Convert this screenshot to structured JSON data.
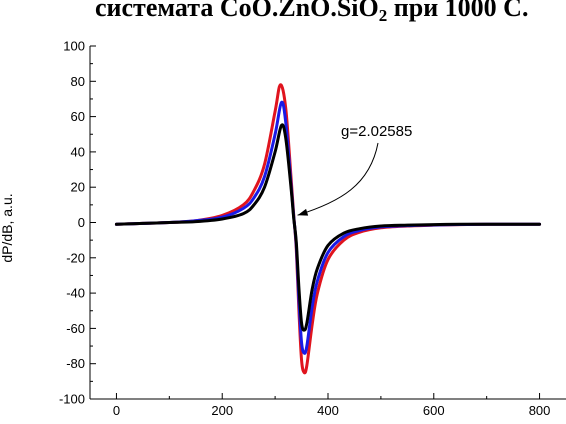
{
  "chart_data": {
    "type": "line",
    "title": {
      "prefix": "системата CoO.ZnO.SiO",
      "subscript": "2",
      "suffix": " при 1000 С."
    },
    "ylabel": "dP/dB, a.u.",
    "xlabel": "",
    "xlim": [
      -50,
      850
    ],
    "ylim": [
      -100,
      100
    ],
    "x_ticks": [
      0,
      200,
      400,
      600,
      800
    ],
    "x_tick_labels": [
      "0",
      "200",
      "400",
      "600",
      "800"
    ],
    "y_ticks": [
      100,
      80,
      60,
      40,
      20,
      0,
      -20,
      -40,
      -60,
      -80,
      -100
    ],
    "y_tick_labels": [
      "100",
      "80",
      "60",
      "40",
      "20",
      "0",
      "-20",
      "-40",
      "-60",
      "-80",
      "-100"
    ],
    "grid": false,
    "series": [
      {
        "color": "#e0141e",
        "x": [
          0,
          50,
          100,
          150,
          200,
          240,
          260,
          280,
          300,
          310,
          320,
          330,
          335,
          340,
          345,
          350,
          355,
          360,
          370,
          380,
          400,
          430,
          460,
          500,
          550,
          600,
          650,
          700,
          750,
          800
        ],
        "y": [
          -1,
          -0.5,
          0,
          1,
          4,
          10,
          18,
          33,
          63,
          78,
          65,
          26,
          5,
          -15,
          -50,
          -78,
          -85,
          -81,
          -58,
          -40,
          -21,
          -10,
          -5.5,
          -3,
          -2,
          -1.5,
          -1.2,
          -1,
          -1,
          -1
        ]
      },
      {
        "color": "#1a1ae6",
        "x": [
          0,
          50,
          100,
          150,
          200,
          240,
          260,
          280,
          300,
          312,
          320,
          330,
          335,
          340,
          345,
          350,
          355,
          360,
          370,
          380,
          400,
          430,
          460,
          500,
          550,
          600,
          650,
          700,
          750,
          800
        ],
        "y": [
          -1,
          -0.5,
          0,
          1,
          3,
          8,
          14,
          26,
          50,
          68,
          57,
          22,
          4,
          -13,
          -44,
          -68,
          -74,
          -70,
          -48,
          -33,
          -17,
          -8,
          -4.5,
          -2.5,
          -1.8,
          -1.4,
          -1.1,
          -1,
          -1,
          -1
        ]
      },
      {
        "color": "#000000",
        "x": [
          0,
          50,
          100,
          150,
          200,
          240,
          260,
          280,
          300,
          312,
          320,
          330,
          335,
          340,
          345,
          350,
          355,
          360,
          370,
          380,
          400,
          430,
          460,
          500,
          550,
          600,
          650,
          700,
          750,
          800
        ],
        "y": [
          -1,
          -0.5,
          0,
          0.5,
          2,
          5,
          10,
          20,
          40,
          55,
          48,
          20,
          3,
          -11,
          -37,
          -57,
          -61,
          -57,
          -38,
          -26,
          -13,
          -6,
          -3.5,
          -2,
          -1.5,
          -1.2,
          -1,
          -1,
          -1,
          -1
        ]
      }
    ],
    "annotation": {
      "text": "g=2.02585",
      "x_value": 333,
      "y_value": 3
    }
  }
}
